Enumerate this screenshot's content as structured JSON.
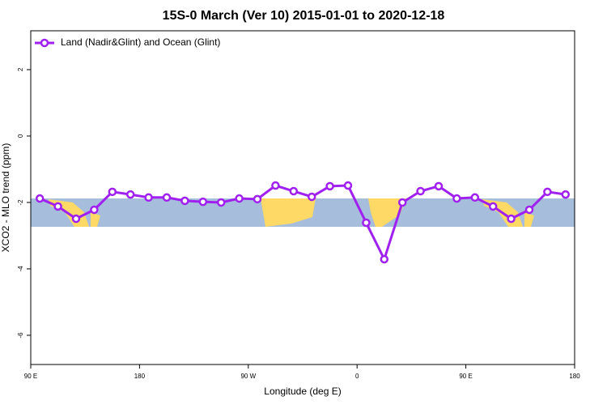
{
  "chart_data": {
    "type": "line",
    "title": "15S-0 March (Ver 10)   2015-01-01 to 2020-12-18",
    "x_label": "Longitude (deg E)",
    "y_label": "XCO2 - MLO trend (ppm)",
    "x": [
      97.5,
      112.5,
      127.5,
      142.5,
      157.5,
      172.5,
      187.5,
      202.5,
      217.5,
      232.5,
      247.5,
      262.5,
      277.5,
      292.5,
      307.5,
      322.5,
      337.5,
      352.5,
      367.5,
      382.5,
      397.5,
      412.5,
      427.5,
      442.5,
      457.5,
      472.5,
      487.5,
      502.5,
      517.5,
      532.5
    ],
    "series": [
      {
        "name": "Land (Nadir&Glint) and Ocean (Glint)",
        "color": "#a020f0",
        "values": [
          -1.88,
          -2.12,
          -2.49,
          -2.22,
          -1.68,
          -1.76,
          -1.85,
          -1.85,
          -1.95,
          -1.98,
          -2.0,
          -1.88,
          -1.9,
          -1.49,
          -1.66,
          -1.83,
          -1.51,
          -1.49,
          -2.61,
          -3.71,
          -2.0,
          -1.66,
          -1.51,
          -1.88,
          -1.85,
          -2.12,
          -2.49,
          -2.22,
          -1.68,
          -1.76
        ]
      }
    ],
    "xlim": [
      90,
      540
    ],
    "xticks": [
      {
        "value": 90,
        "label": "90 E"
      },
      180,
      {
        "value": 270,
        "label": "90 W"
      },
      {
        "value": 360,
        "label": "0"
      },
      {
        "value": 450,
        "label": "90 E"
      },
      {
        "value": 540,
        "label": "180"
      }
    ],
    "ylim": [
      -6.88,
      3.17
    ],
    "yticks": [
      2,
      0,
      -2,
      -4,
      -6
    ],
    "legend": "top-left"
  }
}
